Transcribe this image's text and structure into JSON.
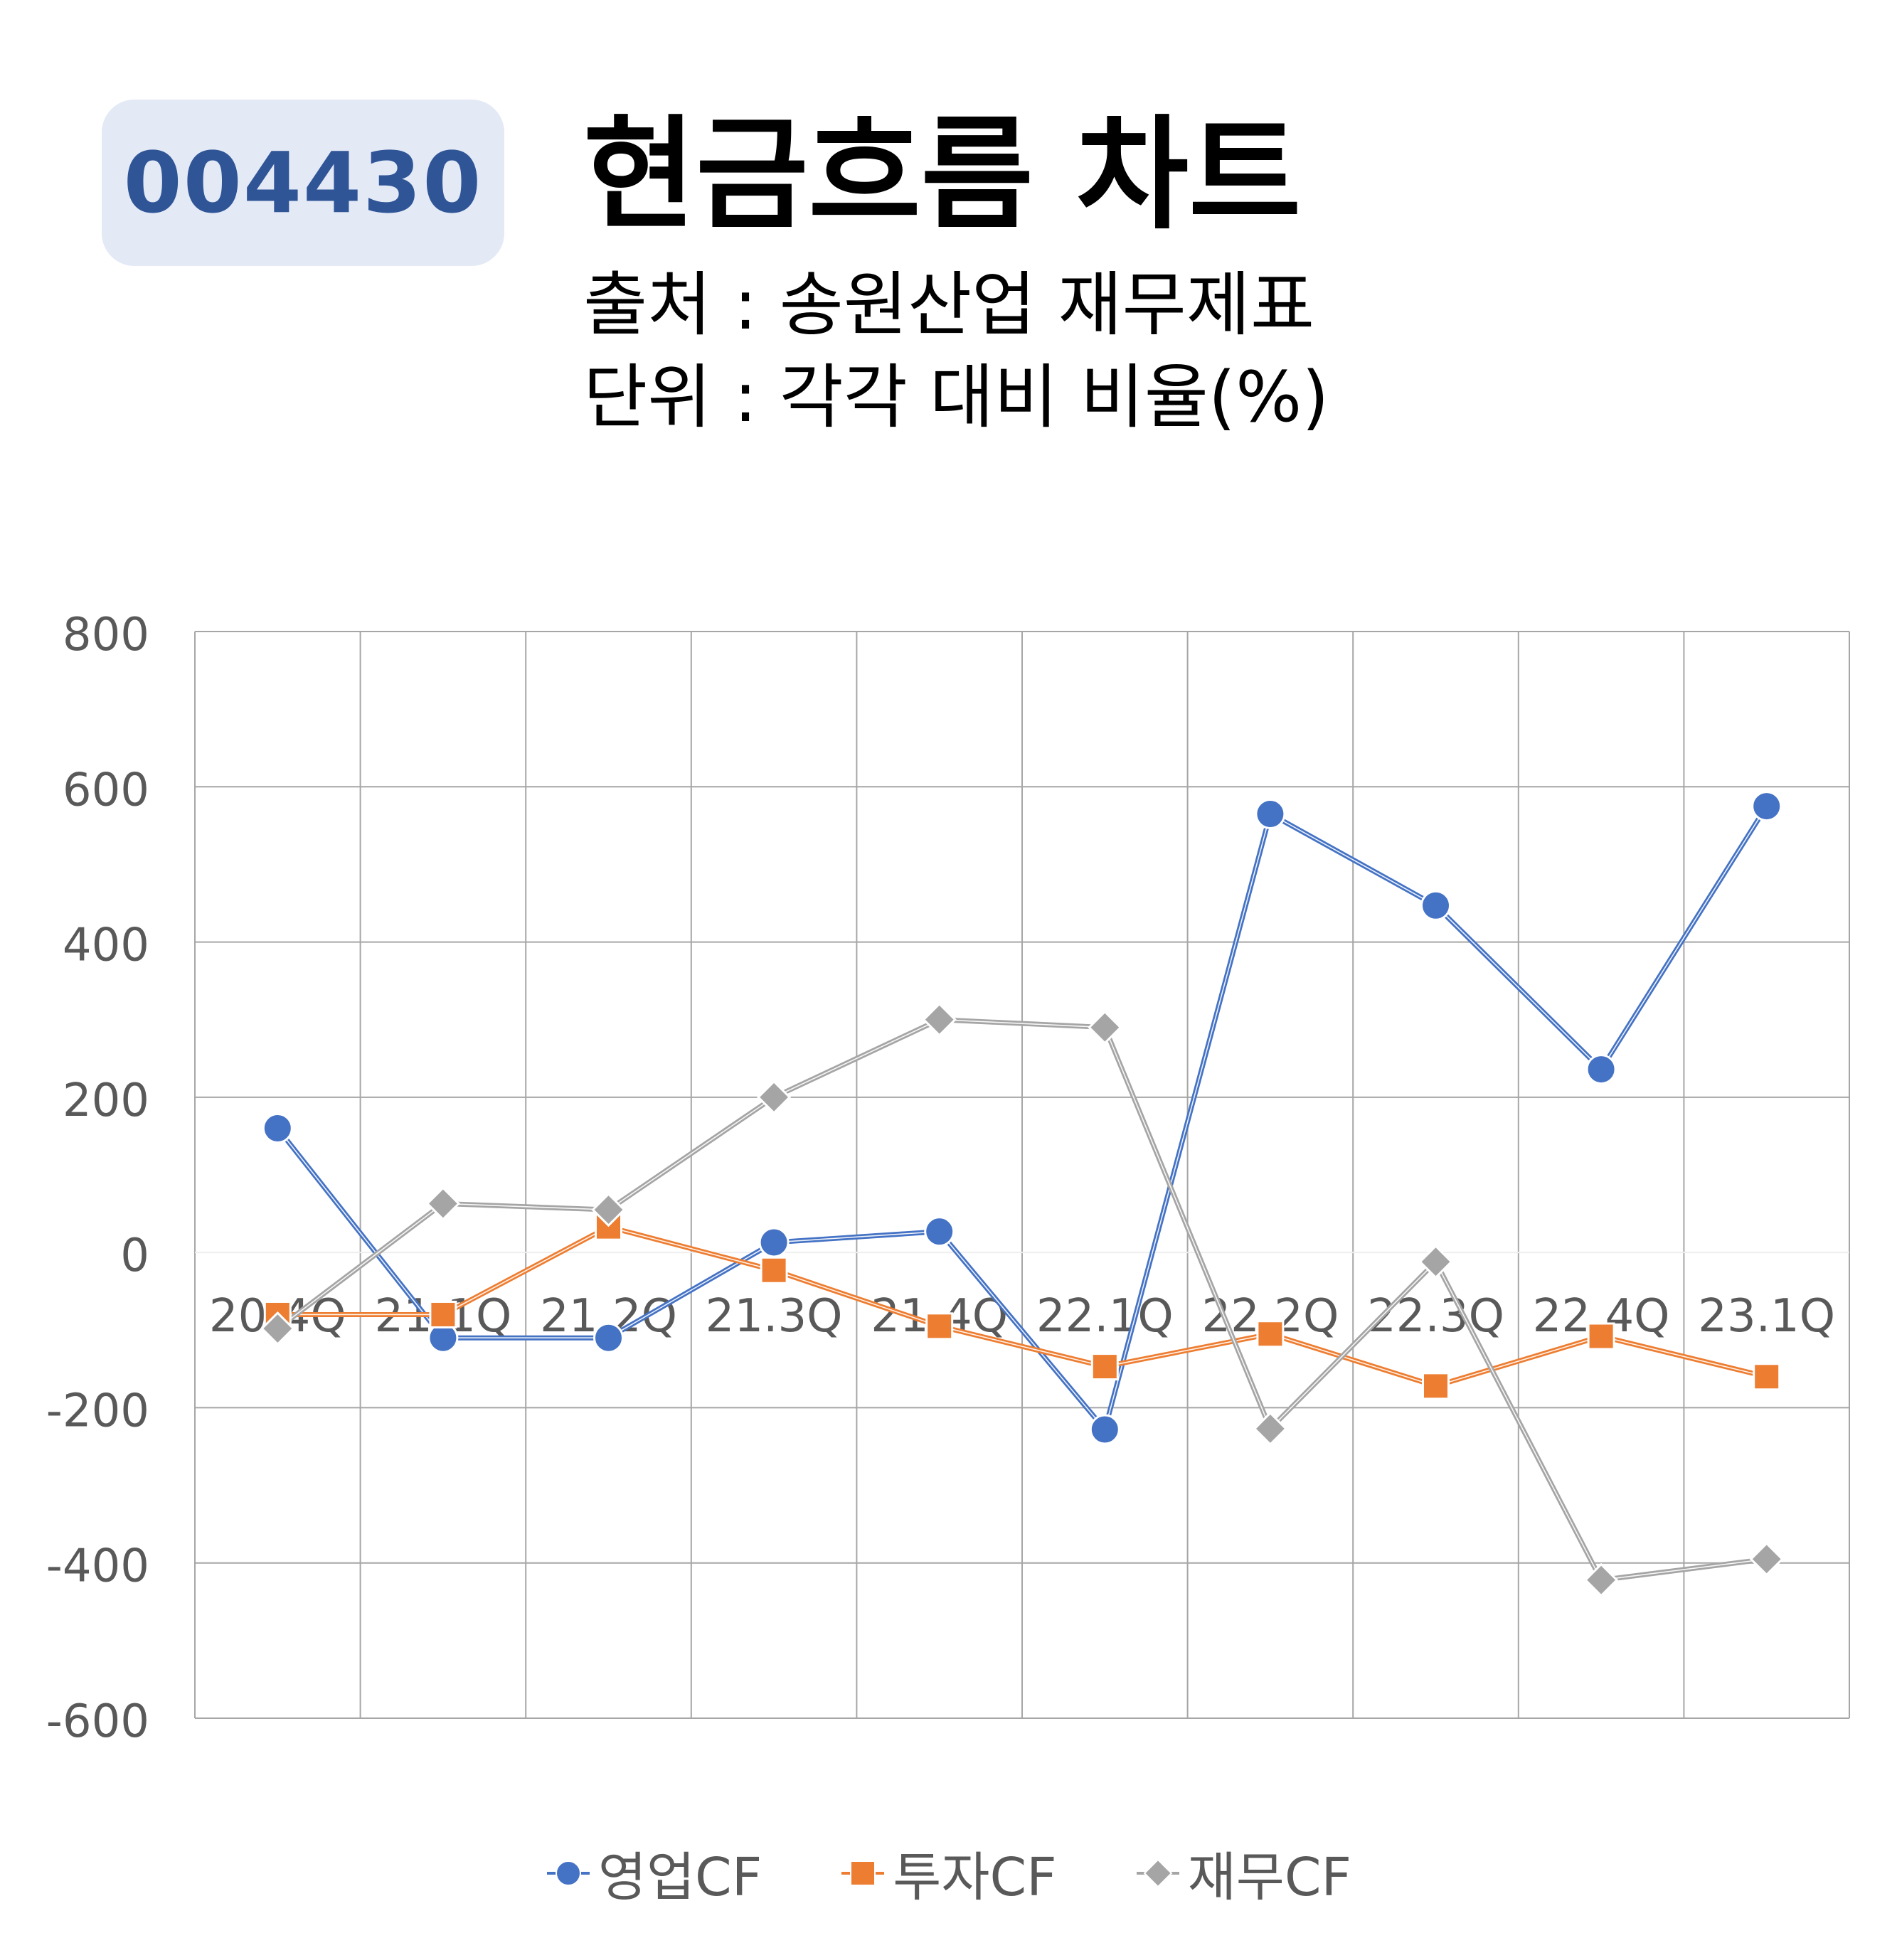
{
  "badge": {
    "code": "004430"
  },
  "header": {
    "title": "현금흐름 차트",
    "source": "출처 : 송원산업 재무제표",
    "unit": "단위 : 각각 대비 비율(%)"
  },
  "colors": {
    "operating": "#4472c4",
    "investing": "#ed7d31",
    "financing": "#a5a5a5",
    "badge_bg": "#e3e9f5",
    "badge_text": "#2f5597"
  },
  "chart_data": {
    "type": "line",
    "categories": [
      "20.4Q",
      "21.1Q",
      "21.2Q",
      "21.3Q",
      "21.4Q",
      "22.1Q",
      "22.2Q",
      "22.3Q",
      "22.4Q",
      "23.1Q"
    ],
    "ylim": [
      -600,
      800
    ],
    "yticks": [
      "800",
      "600",
      "400",
      "200",
      "0",
      "-200",
      "-400",
      "-600"
    ],
    "grid": true,
    "legend_position": "bottom",
    "series": [
      {
        "name": "영업CF",
        "marker": "circle",
        "color": "#4472c4",
        "values": [
          160,
          -110,
          -110,
          13,
          27,
          -228,
          565,
          447,
          236,
          575
        ]
      },
      {
        "name": "투자CF",
        "marker": "square",
        "color": "#ed7d31",
        "values": [
          -80,
          -80,
          33,
          -23,
          -95,
          -147,
          -105,
          -172,
          -108,
          -160
        ]
      },
      {
        "name": "재무CF",
        "marker": "diamond",
        "color": "#a5a5a5",
        "values": [
          -98,
          63,
          55,
          200,
          300,
          290,
          -227,
          -12,
          -422,
          -395
        ]
      }
    ]
  }
}
